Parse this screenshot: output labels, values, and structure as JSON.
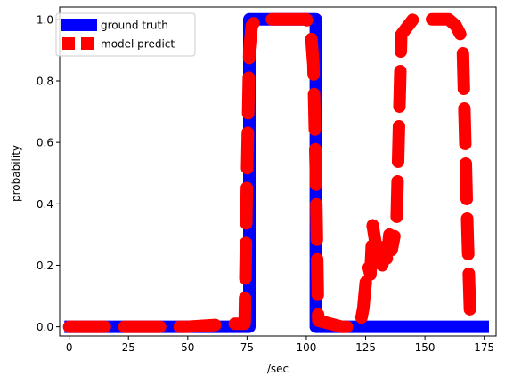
{
  "chart_data": {
    "type": "line",
    "title": "",
    "xlabel": "/sec",
    "ylabel": "probability",
    "xlim": [
      -4,
      180
    ],
    "ylim": [
      -0.03,
      1.04
    ],
    "xticks": [
      0,
      25,
      50,
      75,
      100,
      125,
      150,
      175
    ],
    "yticks": [
      0.0,
      0.2,
      0.4,
      0.6,
      0.8,
      1.0
    ],
    "xtick_labels": [
      "0",
      "25",
      "50",
      "75",
      "100",
      "125",
      "150",
      "175"
    ],
    "ytick_labels": [
      "0.0",
      "0.2",
      "0.4",
      "0.6",
      "0.8",
      "1.0"
    ],
    "grid": false,
    "legend_position": "top-left",
    "series": [
      {
        "name": "ground truth",
        "color": "#0000ff",
        "style": "solid",
        "x": [
          -2,
          76,
          76,
          104,
          104,
          177
        ],
        "y": [
          0.0,
          0.0,
          1.0,
          1.0,
          0.0,
          0.0
        ]
      },
      {
        "name": "model predict",
        "color": "#ff0000",
        "style": "dashed",
        "x": [
          0,
          10,
          20,
          30,
          40,
          50,
          60,
          70,
          74,
          75,
          76,
          77,
          78,
          80,
          85,
          90,
          95,
          100,
          101,
          102,
          103,
          104,
          105,
          110,
          115,
          120,
          122,
          123,
          124,
          125,
          126,
          127,
          128,
          129,
          130,
          131,
          132,
          133,
          134,
          135,
          136,
          137,
          138,
          140,
          145,
          150,
          155,
          160,
          163,
          165,
          166,
          167,
          168,
          169,
          170
        ],
        "y": [
          0.0,
          0.0,
          0.0,
          0.0,
          0.0,
          0.0,
          0.005,
          0.01,
          0.01,
          0.5,
          0.9,
          0.98,
          0.99,
          1.0,
          1.0,
          1.0,
          1.0,
          1.0,
          0.99,
          0.95,
          0.85,
          0.5,
          0.02,
          0.01,
          0.0,
          0.0,
          0.01,
          0.02,
          0.06,
          0.14,
          0.2,
          0.17,
          0.33,
          0.28,
          0.24,
          0.27,
          0.2,
          0.26,
          0.22,
          0.3,
          0.25,
          0.29,
          0.33,
          0.95,
          1.0,
          1.0,
          1.0,
          1.0,
          0.98,
          0.95,
          0.9,
          0.6,
          0.3,
          0.05,
          0.01
        ]
      }
    ]
  }
}
